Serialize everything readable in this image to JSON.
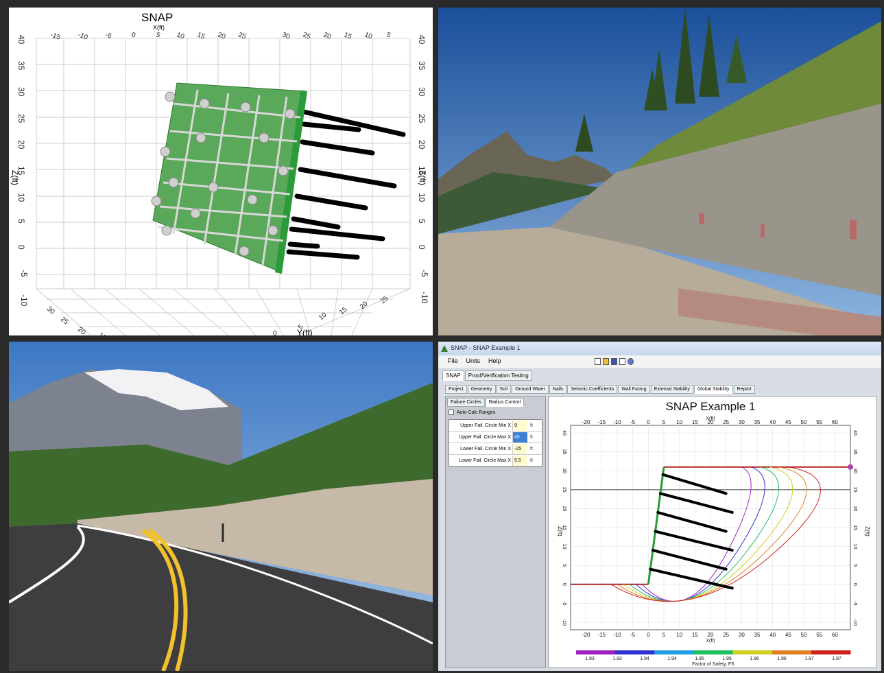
{
  "panel1": {
    "title": "SNAP",
    "x_axis_label": "X(ft)",
    "z_axis_label_left": "Z(ft)",
    "z_axis_label_right": "Z(ft)",
    "y_axis_label": "Y(ft)",
    "left_z_ticks": [
      "40",
      "35",
      "30",
      "25",
      "20",
      "15",
      "10",
      "5",
      "0",
      "-5",
      "-10"
    ],
    "right_z_ticks": [
      "40",
      "35",
      "30",
      "25",
      "20",
      "15",
      "10",
      "5",
      "0",
      "-5",
      "-10"
    ],
    "top_x_ticks_left": [
      "-15",
      "-10",
      "-5",
      "0",
      "5",
      "10",
      "15",
      "20",
      "25"
    ],
    "top_x_ticks_right": [
      "30",
      "25",
      "20",
      "15",
      "10",
      "5"
    ],
    "bottom_y_ticks_left": [
      "30",
      "25",
      "20",
      "15"
    ],
    "bottom_y_ticks_right": [
      "5",
      "10",
      "15",
      "20",
      "25"
    ],
    "bottom_x_ticks": [
      "0"
    ]
  },
  "panel2": {
    "description_colors": {
      "sky": "#1e5fa8",
      "wall": "#8f8a82"
    }
  },
  "panel3": {
    "description_colors": {
      "sky": "#5a8fd0",
      "road": "#3c3c3e"
    }
  },
  "app": {
    "window_title": "SNAP - SNAP Example 1",
    "menu": [
      "File",
      "Units",
      "Help"
    ],
    "top_tabs": [
      "SNAP",
      "Proof/Verification Testing"
    ],
    "section_tabs": [
      "Project",
      "Geometry",
      "Soil",
      "Ground Water",
      "Nails",
      "Seismic Coefficients",
      "Wall Facing",
      "External Stability",
      "Global Stability",
      "Report"
    ],
    "selected_section_tab": "Global Stability",
    "subtabs": [
      "Failure Circles",
      "Radius Control"
    ],
    "selected_subtab": "Radius Control",
    "auto_calc_label": "Auto Calc Ranges",
    "params": [
      {
        "label": "Upper Fail. Circle Min X",
        "value": "9",
        "unit": "ft"
      },
      {
        "label": "Upper Fail. Circle Max X",
        "value": "45",
        "unit": "ft"
      },
      {
        "label": "Lower Fail. Circle Min X",
        "value": "-25",
        "unit": "ft"
      },
      {
        "label": "Lower Fail. Circle Max X",
        "value": "5.5",
        "unit": "ft"
      }
    ]
  },
  "chart_data": {
    "type": "line",
    "title": "SNAP Example 1",
    "xlabel": "X(ft)",
    "ylabel": "Z(ft)",
    "x_ticks": [
      "-20",
      "-15",
      "-10",
      "-5",
      "0",
      "5",
      "10",
      "15",
      "20",
      "25",
      "30",
      "35",
      "40",
      "45",
      "50",
      "55",
      "60"
    ],
    "y_ticks": [
      "40",
      "35",
      "30",
      "25",
      "20",
      "15",
      "10",
      "5",
      "0",
      "-5",
      "-10"
    ],
    "xlim": [
      -25,
      65
    ],
    "ylim": [
      -12,
      42
    ],
    "wall_top": 31,
    "colorbar_label": "Factor of Safety, FS",
    "colorbar_ticks": [
      "1.93",
      "1.93",
      "1.94",
      "1.94",
      "1.95",
      "1.95",
      "1.96",
      "1.96",
      "1.97",
      "1.97"
    ],
    "colorbar_colors": [
      "#a020c0",
      "#3030d0",
      "#20a0e0",
      "#20c060",
      "#d0d020",
      "#e08020",
      "#d02020"
    ]
  }
}
